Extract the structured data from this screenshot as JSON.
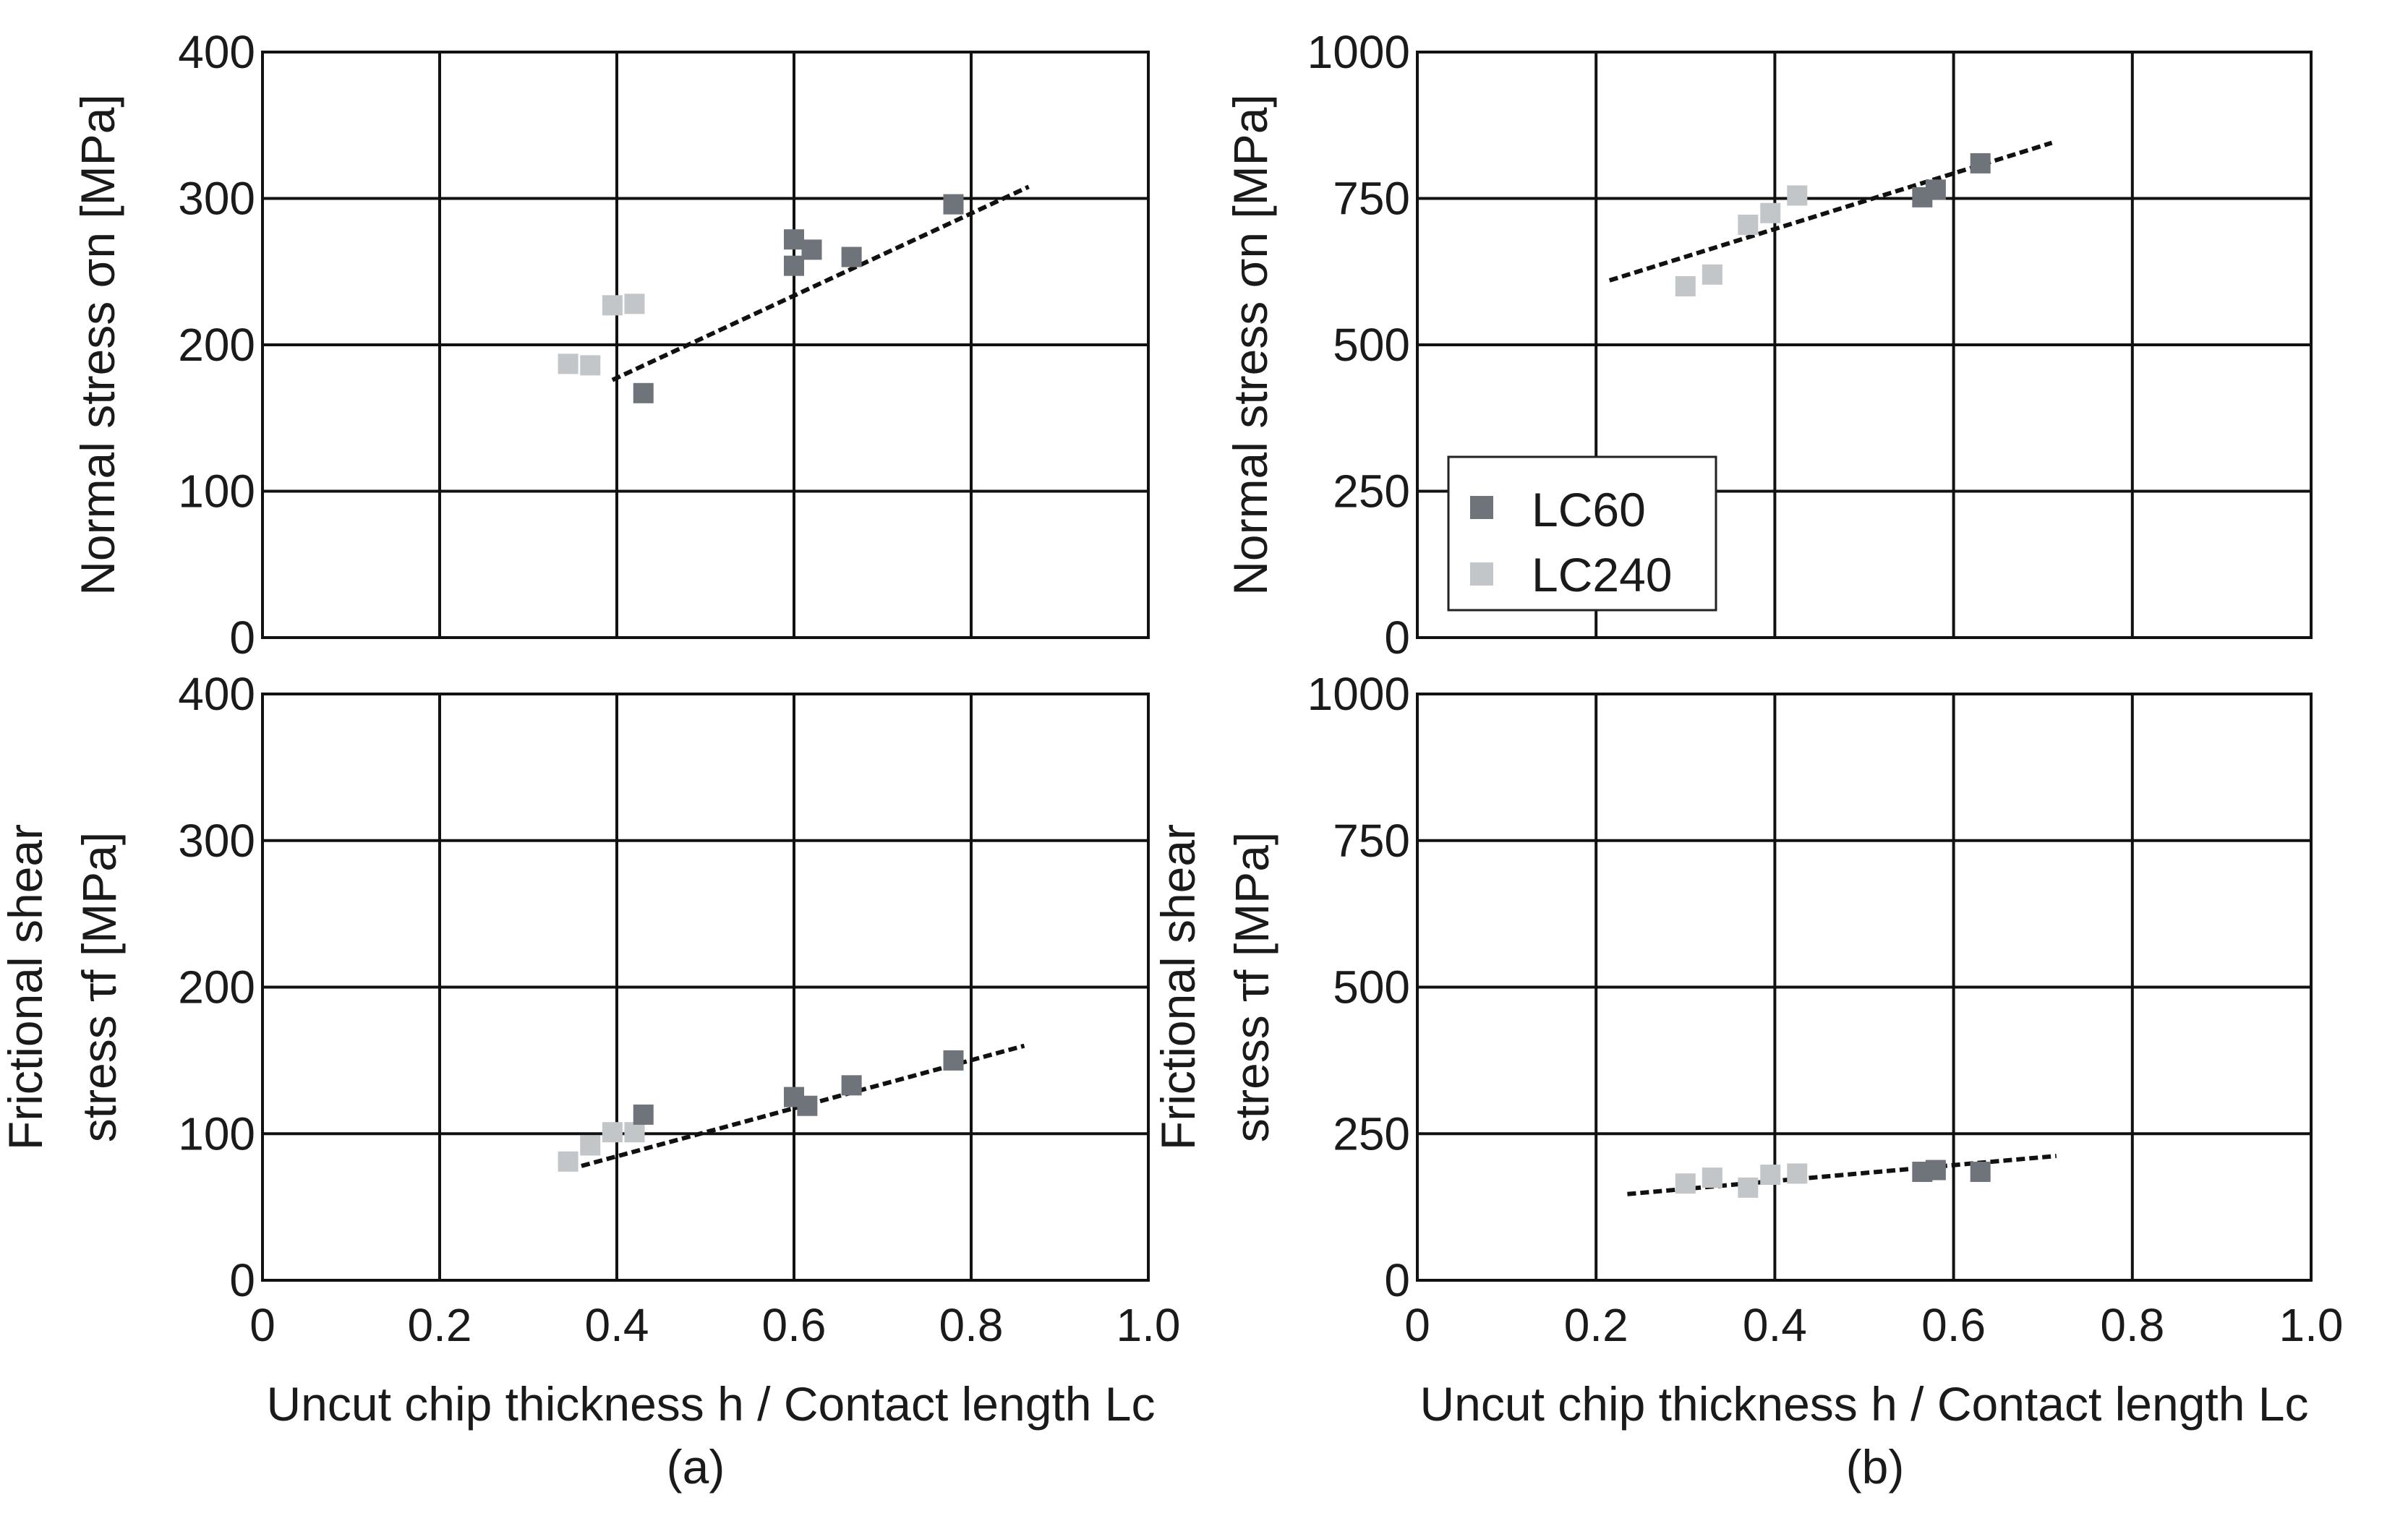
{
  "colors": {
    "lc60": "#6e7479",
    "lc240": "#c3c6c8",
    "grid": "#111111",
    "fit": "#111111"
  },
  "legend": {
    "items": [
      "LC60",
      "LC240"
    ],
    "placement": "inside panel b-top, left-center"
  },
  "chart_data": [
    {
      "id": "a-top",
      "type": "scatter",
      "ylabel": "Normal stress σn [MPa]",
      "xlim": [
        0,
        1.0
      ],
      "ylim": [
        0,
        400
      ],
      "yticks": [
        "0",
        "100",
        "200",
        "300",
        "400"
      ],
      "grid": true,
      "series": [
        {
          "name": "LC60",
          "x": [
            0.43,
            0.6,
            0.6,
            0.62,
            0.665,
            0.78
          ],
          "y": [
            167,
            272,
            254,
            265,
            260,
            296
          ]
        },
        {
          "name": "LC240",
          "x": [
            0.345,
            0.37,
            0.395,
            0.42
          ],
          "y": [
            187,
            186,
            227,
            228
          ]
        }
      ],
      "fit": {
        "x": [
          0.395,
          0.865
        ],
        "y": [
          176,
          308
        ]
      }
    },
    {
      "id": "a-bottom",
      "type": "scatter",
      "ylabel_lines": [
        "Frictional shear",
        "stress τf [MPa]"
      ],
      "xlabel": "Uncut chip thickness h / Contact length Lc",
      "caption": "(a)",
      "xlim": [
        0,
        1.0
      ],
      "ylim": [
        0,
        400
      ],
      "xticks": [
        "0",
        "0.2",
        "0.4",
        "0.6",
        "0.8",
        "1.0"
      ],
      "yticks": [
        "0",
        "100",
        "200",
        "300",
        "400"
      ],
      "grid": true,
      "series": [
        {
          "name": "LC60",
          "x": [
            0.43,
            0.6,
            0.615,
            0.665,
            0.78
          ],
          "y": [
            113,
            125,
            119,
            133,
            150
          ]
        },
        {
          "name": "LC240",
          "x": [
            0.345,
            0.37,
            0.395,
            0.42
          ],
          "y": [
            81,
            92,
            101,
            101
          ]
        }
      ],
      "fit": {
        "x": [
          0.36,
          0.86
        ],
        "y": [
          78,
          160
        ]
      }
    },
    {
      "id": "b-top",
      "type": "scatter",
      "ylabel": "Normal stress σn [MPa]",
      "xlim": [
        0,
        1.0
      ],
      "ylim": [
        0,
        1000
      ],
      "yticks": [
        "0",
        "250",
        "500",
        "750",
        "1000"
      ],
      "grid": true,
      "series": [
        {
          "name": "LC60",
          "x": [
            0.565,
            0.58,
            0.63
          ],
          "y": [
            752,
            765,
            810
          ]
        },
        {
          "name": "LC240",
          "x": [
            0.3,
            0.33,
            0.37,
            0.395,
            0.425
          ],
          "y": [
            600,
            620,
            705,
            725,
            755
          ]
        }
      ],
      "fit": {
        "x": [
          0.215,
          0.71
        ],
        "y": [
          610,
          845
        ]
      }
    },
    {
      "id": "b-bottom",
      "type": "scatter",
      "ylabel_lines": [
        "Frictional shear",
        "stress τf [MPa]"
      ],
      "xlabel": "Uncut chip thickness h / Contact length Lc",
      "caption": "(b)",
      "xlim": [
        0,
        1.0
      ],
      "ylim": [
        0,
        1000
      ],
      "xticks": [
        "0",
        "0.2",
        "0.4",
        "0.6",
        "0.8",
        "1.0"
      ],
      "yticks": [
        "0",
        "250",
        "500",
        "750",
        "1000"
      ],
      "grid": true,
      "series": [
        {
          "name": "LC60",
          "x": [
            0.565,
            0.58,
            0.63
          ],
          "y": [
            185,
            188,
            185
          ]
        },
        {
          "name": "LC240",
          "x": [
            0.3,
            0.33,
            0.37,
            0.395,
            0.425
          ],
          "y": [
            165,
            175,
            158,
            180,
            182
          ]
        }
      ],
      "fit": {
        "x": [
          0.235,
          0.715
        ],
        "y": [
          147,
          212
        ]
      }
    }
  ]
}
